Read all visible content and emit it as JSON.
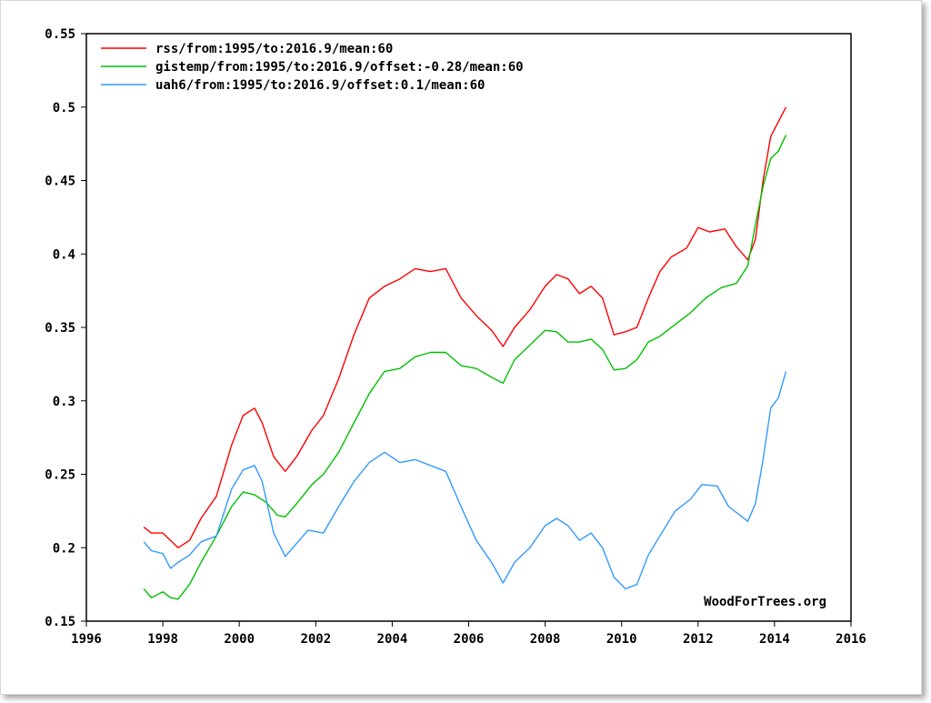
{
  "chart_data": {
    "type": "line",
    "title": "",
    "xlabel": "",
    "ylabel": "",
    "xlim": [
      1996,
      2016
    ],
    "ylim": [
      0.15,
      0.55
    ],
    "x_ticks": [
      "1996",
      "1998",
      "2000",
      "2002",
      "2004",
      "2006",
      "2008",
      "2010",
      "2012",
      "2014",
      "2016"
    ],
    "y_ticks": [
      "0.15",
      "0.2",
      "0.25",
      "0.3",
      "0.35",
      "0.4",
      "0.45",
      "0.5",
      "0.55"
    ],
    "grid": false,
    "legend_position": "top-left",
    "watermark": "WoodForTrees.org",
    "series": [
      {
        "name": "rss/from:1995/to:2016.9/mean:60",
        "color": "#ff0000",
        "x": [
          1997.5,
          1997.7,
          1998.0,
          1998.2,
          1998.4,
          1998.7,
          1999.0,
          1999.4,
          1999.8,
          2000.1,
          2000.4,
          2000.6,
          2000.9,
          2001.2,
          2001.5,
          2001.9,
          2002.2,
          2002.6,
          2003.0,
          2003.4,
          2003.8,
          2004.2,
          2004.6,
          2005.0,
          2005.4,
          2005.8,
          2006.2,
          2006.6,
          2006.9,
          2007.2,
          2007.6,
          2008.0,
          2008.3,
          2008.6,
          2008.9,
          2009.2,
          2009.5,
          2009.8,
          2010.1,
          2010.4,
          2010.7,
          2011.0,
          2011.3,
          2011.7,
          2012.0,
          2012.3,
          2012.7,
          2013.0,
          2013.3,
          2013.5,
          2013.7,
          2013.9,
          2014.1,
          2014.3
        ],
        "values": [
          0.214,
          0.21,
          0.21,
          0.205,
          0.2,
          0.205,
          0.22,
          0.235,
          0.27,
          0.29,
          0.295,
          0.285,
          0.262,
          0.252,
          0.262,
          0.28,
          0.29,
          0.315,
          0.345,
          0.37,
          0.378,
          0.383,
          0.39,
          0.388,
          0.39,
          0.37,
          0.358,
          0.348,
          0.337,
          0.35,
          0.362,
          0.378,
          0.386,
          0.383,
          0.373,
          0.378,
          0.37,
          0.345,
          0.347,
          0.35,
          0.37,
          0.388,
          0.398,
          0.404,
          0.418,
          0.415,
          0.417,
          0.405,
          0.396,
          0.41,
          0.45,
          0.48,
          0.49,
          0.5
        ]
      },
      {
        "name": "gistemp/from:1995/to:2016.9/offset:-0.28/mean:60",
        "color": "#00c000",
        "x": [
          1997.5,
          1997.7,
          1998.0,
          1998.2,
          1998.4,
          1998.7,
          1999.0,
          1999.4,
          1999.8,
          2000.1,
          2000.4,
          2000.7,
          2001.0,
          2001.2,
          2001.5,
          2001.9,
          2002.2,
          2002.6,
          2003.0,
          2003.4,
          2003.8,
          2004.2,
          2004.6,
          2005.0,
          2005.4,
          2005.8,
          2006.2,
          2006.6,
          2006.9,
          2007.2,
          2007.6,
          2008.0,
          2008.3,
          2008.6,
          2008.9,
          2009.2,
          2009.5,
          2009.8,
          2010.1,
          2010.4,
          2010.7,
          2011.0,
          2011.4,
          2011.8,
          2012.2,
          2012.6,
          2013.0,
          2013.3,
          2013.5,
          2013.7,
          2013.9,
          2014.1,
          2014.3
        ],
        "values": [
          0.172,
          0.166,
          0.17,
          0.166,
          0.165,
          0.175,
          0.19,
          0.208,
          0.228,
          0.238,
          0.236,
          0.231,
          0.222,
          0.221,
          0.23,
          0.243,
          0.25,
          0.265,
          0.285,
          0.305,
          0.32,
          0.322,
          0.33,
          0.333,
          0.333,
          0.324,
          0.322,
          0.316,
          0.312,
          0.328,
          0.338,
          0.348,
          0.347,
          0.34,
          0.34,
          0.342,
          0.335,
          0.321,
          0.322,
          0.328,
          0.34,
          0.344,
          0.352,
          0.36,
          0.37,
          0.377,
          0.38,
          0.392,
          0.42,
          0.446,
          0.465,
          0.47,
          0.481
        ]
      },
      {
        "name": "uah6/from:1995/to:2016.9/offset:0.1/mean:60",
        "color": "#3399ff",
        "x": [
          1997.5,
          1997.7,
          1998.0,
          1998.2,
          1998.4,
          1998.7,
          1999.0,
          1999.4,
          1999.8,
          2000.1,
          2000.4,
          2000.6,
          2000.9,
          2001.2,
          2001.4,
          2001.8,
          2002.2,
          2002.6,
          2003.0,
          2003.4,
          2003.8,
          2004.2,
          2004.6,
          2005.0,
          2005.4,
          2005.8,
          2006.2,
          2006.6,
          2006.9,
          2007.2,
          2007.6,
          2008.0,
          2008.3,
          2008.6,
          2008.9,
          2009.2,
          2009.5,
          2009.8,
          2010.1,
          2010.4,
          2010.7,
          2011.0,
          2011.4,
          2011.8,
          2012.1,
          2012.5,
          2012.8,
          2013.1,
          2013.3,
          2013.5,
          2013.7,
          2013.9,
          2014.1,
          2014.3
        ],
        "values": [
          0.204,
          0.198,
          0.196,
          0.186,
          0.19,
          0.195,
          0.204,
          0.208,
          0.24,
          0.253,
          0.256,
          0.245,
          0.21,
          0.194,
          0.2,
          0.212,
          0.21,
          0.228,
          0.245,
          0.258,
          0.265,
          0.258,
          0.26,
          0.256,
          0.252,
          0.228,
          0.205,
          0.19,
          0.176,
          0.19,
          0.2,
          0.215,
          0.22,
          0.215,
          0.205,
          0.21,
          0.2,
          0.18,
          0.172,
          0.175,
          0.195,
          0.208,
          0.225,
          0.233,
          0.243,
          0.242,
          0.228,
          0.222,
          0.218,
          0.23,
          0.26,
          0.295,
          0.302,
          0.32
        ]
      }
    ]
  }
}
